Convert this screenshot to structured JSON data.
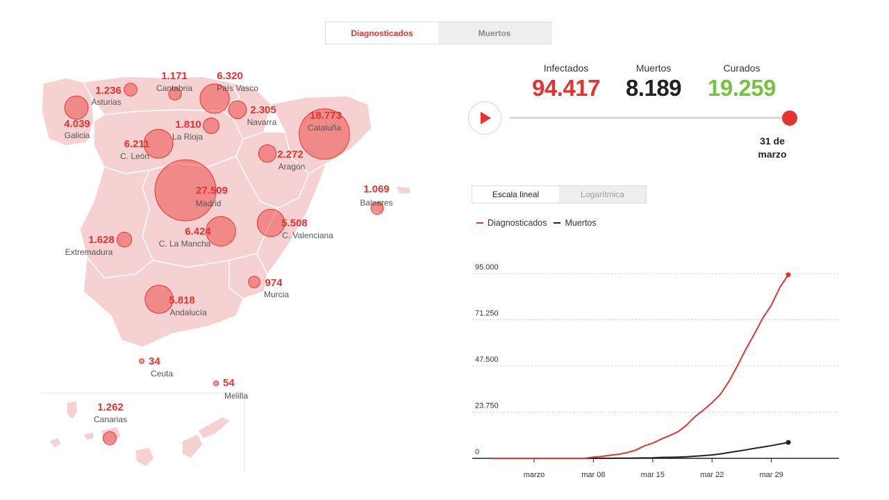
{
  "toggle": {
    "tabs": [
      {
        "label": "Diagnosticados",
        "active": true
      },
      {
        "label": "Muertos",
        "active": false
      }
    ]
  },
  "stats": [
    {
      "label": "Infectados",
      "value": "94.417",
      "color": "#e8322f"
    },
    {
      "label": "Muertos",
      "value": "8.189",
      "color": "#222222"
    },
    {
      "label": "Curados",
      "value": "19.259",
      "color": "#7ac142"
    }
  ],
  "timeline": {
    "date_line1": "31 de",
    "date_line2": "marzo"
  },
  "scale_toggle": {
    "linear": "Escala lineal",
    "log": "Logarítmica"
  },
  "legend": [
    {
      "label": "Diagnosticados",
      "color": "#e8322f"
    },
    {
      "label": "Muertos",
      "color": "#222222"
    }
  ],
  "map": {
    "regions": [
      {
        "name": "Asturias",
        "value": "1.236",
        "cases": 1236
      },
      {
        "name": "Cantabria",
        "value": "1.171",
        "cases": 1171
      },
      {
        "name": "País Vasco",
        "value": "6.320",
        "cases": 6320
      },
      {
        "name": "Galicia",
        "value": "4.039",
        "cases": 4039
      },
      {
        "name": "Navarra",
        "value": "2.305",
        "cases": 2305
      },
      {
        "name": "Cataluña",
        "value": "18.773",
        "cases": 18773
      },
      {
        "name": "La Rioja",
        "value": "1.810",
        "cases": 1810
      },
      {
        "name": "C. León",
        "value": "6.211",
        "cases": 6211
      },
      {
        "name": "Aragón",
        "value": "2.272",
        "cases": 2272
      },
      {
        "name": "Madrid",
        "value": "27.509",
        "cases": 27509
      },
      {
        "name": "Baleares",
        "value": "1.069",
        "cases": 1069
      },
      {
        "name": "C. Valenciana",
        "value": "5.508",
        "cases": 5508
      },
      {
        "name": "C. La Mancha",
        "value": "6.424",
        "cases": 6424
      },
      {
        "name": "Extremadura",
        "value": "1.628",
        "cases": 1628
      },
      {
        "name": "Murcia",
        "value": "974",
        "cases": 974
      },
      {
        "name": "Andalucía",
        "value": "5.818",
        "cases": 5818
      },
      {
        "name": "Ceuta",
        "value": "34",
        "cases": 34
      },
      {
        "name": "Melilla",
        "value": "54",
        "cases": 54
      },
      {
        "name": "Canarias",
        "value": "1.262",
        "cases": 1262
      }
    ]
  },
  "chart_data": {
    "type": "line",
    "title": "",
    "xlabel": "",
    "ylabel": "",
    "x_labels": [
      "marzo",
      "mar 08",
      "mar 15",
      "mar 22",
      "mar 29"
    ],
    "y_ticks": [
      "0",
      "23.750",
      "47.500",
      "71.250",
      "95.000"
    ],
    "ylim": [
      0,
      95000
    ],
    "x": [
      "feb 25",
      "feb 26",
      "feb 27",
      "feb 28",
      "feb 29",
      "mar 01",
      "mar 02",
      "mar 03",
      "mar 04",
      "mar 05",
      "mar 06",
      "mar 07",
      "mar 08",
      "mar 09",
      "mar 10",
      "mar 11",
      "mar 12",
      "mar 13",
      "mar 14",
      "mar 15",
      "mar 16",
      "mar 17",
      "mar 18",
      "mar 19",
      "mar 20",
      "mar 21",
      "mar 22",
      "mar 23",
      "mar 24",
      "mar 25",
      "mar 26",
      "mar 27",
      "mar 28",
      "mar 29",
      "mar 30",
      "mar 31"
    ],
    "series": [
      {
        "name": "Diagnosticados",
        "color": "#e8322f",
        "values": [
          0,
          0,
          0,
          0,
          0,
          0,
          0,
          0,
          0,
          0,
          0,
          0,
          600,
          1000,
          1600,
          2100,
          3000,
          4200,
          6400,
          7800,
          9900,
          11700,
          13700,
          17100,
          21500,
          24900,
          28600,
          33000,
          39600,
          47600,
          56200,
          64000,
          72200,
          78800,
          87900,
          94417
        ]
      },
      {
        "name": "Muertos",
        "color": "#222222",
        "values": [
          0,
          0,
          0,
          0,
          0,
          0,
          0,
          0,
          0,
          0,
          0,
          0,
          10,
          30,
          50,
          80,
          100,
          130,
          200,
          300,
          490,
          530,
          640,
          830,
          1090,
          1380,
          1750,
          2300,
          2990,
          3640,
          4370,
          5140,
          5810,
          6530,
          7340,
          8189
        ]
      }
    ]
  }
}
